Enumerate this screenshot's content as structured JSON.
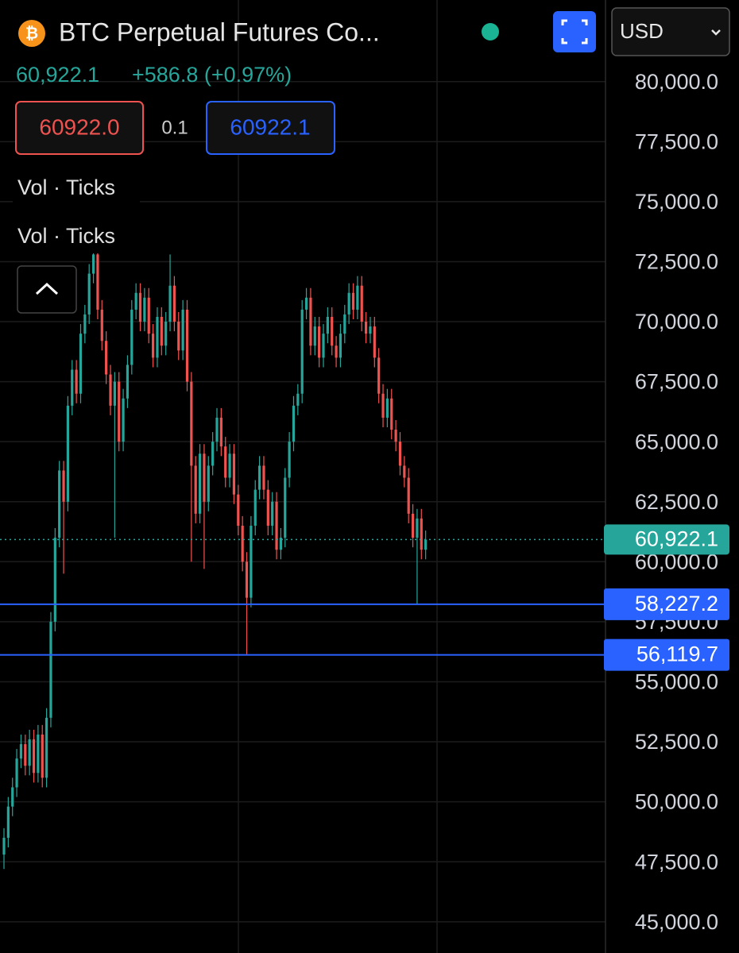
{
  "chart_data": {
    "type": "candlestick",
    "title": "BTC Perpetual Futures Co...",
    "last_price": "60,922.1",
    "change": "+586.8 (+0.97%)",
    "bid": "60922.0",
    "spread": "0.1",
    "ask": "60922.1",
    "indicators": [
      "Vol · Ticks",
      "Vol · Ticks"
    ],
    "currency": "USD",
    "up_color": "#26a69a",
    "down_color": "#ef5350",
    "grid": true,
    "ylim": [
      43700,
      83400
    ],
    "yticks": [
      {
        "value": 45000,
        "label": "45,000.0"
      },
      {
        "value": 47500,
        "label": "47,500.0"
      },
      {
        "value": 50000,
        "label": "50,000.0"
      },
      {
        "value": 52500,
        "label": "52,500.0"
      },
      {
        "value": 55000,
        "label": "55,000.0"
      },
      {
        "value": 57500,
        "label": "57,500.0"
      },
      {
        "value": 60000,
        "label": "60,000.0"
      },
      {
        "value": 62500,
        "label": "62,500.0"
      },
      {
        "value": 65000,
        "label": "65,000.0"
      },
      {
        "value": 67500,
        "label": "67,500.0"
      },
      {
        "value": 70000,
        "label": "70,000.0"
      },
      {
        "value": 72500,
        "label": "72,500.0"
      },
      {
        "value": 75000,
        "label": "75,000.0"
      },
      {
        "value": 77500,
        "label": "77,500.0"
      },
      {
        "value": 80000,
        "label": "80,000.0"
      }
    ],
    "last_price_line": {
      "value": 60922.1,
      "label": "60,922.1",
      "color": "#26a69a"
    },
    "price_lines": [
      {
        "value": 58227.2,
        "label": "58,227.2",
        "color": "#2962ff"
      },
      {
        "value": 56119.7,
        "label": "56,119.7",
        "color": "#2962ff"
      }
    ],
    "open": [
      47800,
      48500,
      49800,
      50600,
      51800,
      52400,
      51500,
      52600,
      51200,
      52800,
      51000,
      53500,
      57500,
      61000,
      63800,
      62500,
      66500,
      68000,
      67000,
      69500,
      70300,
      72000,
      72800,
      70500,
      69200,
      67800,
      66500,
      67500,
      65000,
      66800,
      68200,
      70500,
      71200,
      70000,
      71000,
      69500,
      68500,
      70200,
      69000,
      70000,
      71500,
      70000,
      68800,
      70500,
      67500,
      64000,
      62000,
      64500,
      62500,
      64000,
      65000,
      66000,
      64800,
      63500,
      64500,
      62800,
      61500,
      60000,
      58500,
      61500,
      63000,
      64000,
      63000,
      61500,
      62500,
      60500,
      61000,
      63500,
      65000,
      66500,
      67000,
      70500,
      71000,
      69000,
      69800,
      68500,
      69500,
      70200,
      69000,
      68500,
      69500,
      70300,
      71200,
      70500,
      71500,
      70000,
      69500,
      69800,
      68500,
      67000,
      66000,
      66800,
      65500,
      65000,
      64000,
      63500,
      62000,
      61000,
      61800,
      60500
    ],
    "high": [
      48900,
      50200,
      51000,
      52200,
      52800,
      52800,
      53000,
      53000,
      53200,
      53200,
      53900,
      57900,
      61400,
      64200,
      64200,
      66900,
      68400,
      68400,
      69900,
      70700,
      72400,
      73300,
      73200,
      70900,
      69600,
      68200,
      67900,
      67900,
      67200,
      68600,
      70900,
      71600,
      71600,
      71400,
      71400,
      69900,
      70600,
      70600,
      70400,
      72800,
      71900,
      70400,
      70900,
      70900,
      67900,
      64400,
      64900,
      64900,
      64400,
      65400,
      66400,
      66400,
      65200,
      64900,
      64900,
      63200,
      61900,
      60400,
      61900,
      63400,
      64400,
      64400,
      63400,
      62900,
      62900,
      61400,
      63900,
      65400,
      66900,
      67400,
      70900,
      71400,
      71400,
      70200,
      70200,
      69900,
      70600,
      70600,
      69400,
      69900,
      70700,
      71600,
      71600,
      71900,
      71900,
      70400,
      70200,
      70200,
      68900,
      67400,
      67200,
      67200,
      65900,
      65400,
      64400,
      63900,
      62400,
      62200,
      62200,
      61300
    ],
    "low": [
      47200,
      48100,
      49400,
      50200,
      51400,
      51100,
      51100,
      50800,
      50800,
      50600,
      50600,
      53100,
      57100,
      60600,
      59500,
      62100,
      66100,
      66600,
      66600,
      69100,
      69900,
      71600,
      70100,
      68800,
      67400,
      66100,
      61000,
      64600,
      64600,
      66400,
      67800,
      70100,
      69600,
      69600,
      69100,
      68100,
      68100,
      68600,
      68600,
      69600,
      69600,
      68400,
      68400,
      67100,
      60000,
      61600,
      61600,
      59700,
      62100,
      63600,
      64600,
      64400,
      63100,
      63100,
      62400,
      61100,
      59600,
      56119.7,
      58100,
      61100,
      62600,
      62600,
      61100,
      61100,
      60100,
      60100,
      60600,
      63100,
      64600,
      66100,
      66600,
      70100,
      68600,
      68600,
      68100,
      68100,
      69100,
      68600,
      68100,
      68100,
      69100,
      69900,
      70100,
      70100,
      69600,
      69100,
      69100,
      68100,
      66600,
      65600,
      65600,
      65100,
      64600,
      63600,
      63100,
      61600,
      60600,
      58227.2,
      60100,
      60100
    ],
    "close": [
      48500,
      49800,
      50600,
      51800,
      52400,
      51500,
      52600,
      51200,
      52800,
      51000,
      53500,
      57500,
      61000,
      63800,
      62500,
      66500,
      68000,
      67000,
      69500,
      70300,
      72000,
      72800,
      70500,
      69200,
      67800,
      66500,
      67500,
      65000,
      66800,
      68200,
      70500,
      71200,
      70000,
      71000,
      69500,
      68500,
      70200,
      69000,
      70000,
      71500,
      70000,
      68800,
      70500,
      67500,
      64000,
      62000,
      64500,
      62500,
      64000,
      65000,
      66000,
      64800,
      63500,
      64500,
      62800,
      61500,
      60000,
      58500,
      61500,
      63000,
      64000,
      63000,
      61500,
      62500,
      60500,
      61000,
      63500,
      65000,
      66500,
      67000,
      70500,
      71000,
      69000,
      69800,
      68500,
      69500,
      70200,
      69000,
      68500,
      69500,
      70300,
      71200,
      70500,
      71500,
      70000,
      69500,
      69800,
      68500,
      67000,
      66000,
      66800,
      65500,
      65000,
      64000,
      63500,
      62000,
      61000,
      61800,
      60500,
      60922.1
    ]
  }
}
